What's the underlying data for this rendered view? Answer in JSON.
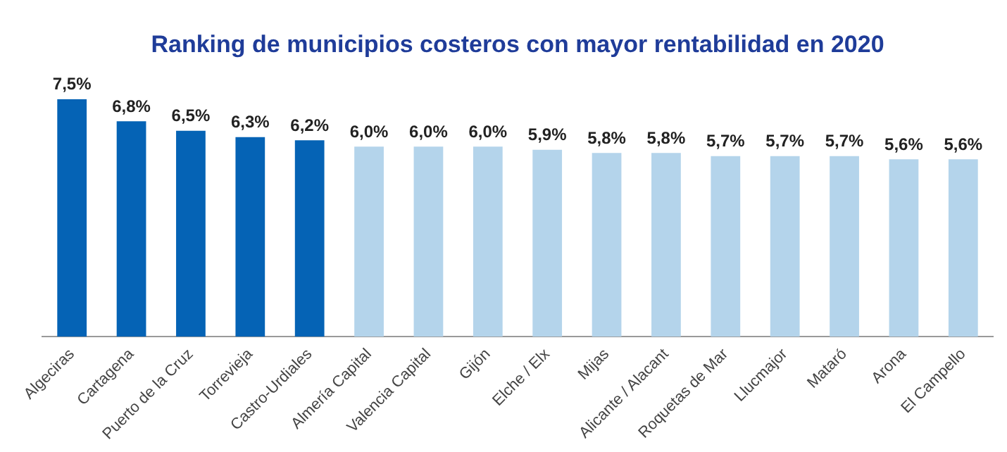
{
  "chart_data": {
    "type": "bar",
    "title": "Ranking de municipios costeros con mayor rentabilidad en 2020",
    "categories": [
      "Algeciras",
      "Cartagena",
      "Puerto de la Cruz",
      "Torrevieja",
      "Castro-Urdiales",
      "Almería Capital",
      "Valencia Capital",
      "Gijón",
      "Elche / Elx",
      "Mijas",
      "Alicante / Alacant",
      "Roquetas de Mar",
      "Llucmajor",
      "Mataró",
      "Arona",
      "El Campello"
    ],
    "values": [
      7.5,
      6.8,
      6.5,
      6.3,
      6.2,
      6.0,
      6.0,
      6.0,
      5.9,
      5.8,
      5.8,
      5.7,
      5.7,
      5.7,
      5.6,
      5.6
    ],
    "value_labels": [
      "7,5%",
      "6,8%",
      "6,5%",
      "6,3%",
      "6,2%",
      "6,0%",
      "6,0%",
      "6,0%",
      "5,9%",
      "5,8%",
      "5,8%",
      "5,7%",
      "5,7%",
      "5,7%",
      "5,6%",
      "5,6%"
    ],
    "colors": [
      "#0563b5",
      "#0563b5",
      "#0563b5",
      "#0563b5",
      "#0563b5",
      "#b4d4eb",
      "#b4d4eb",
      "#b4d4eb",
      "#b4d4eb",
      "#b4d4eb",
      "#b4d4eb",
      "#b4d4eb",
      "#b4d4eb",
      "#b4d4eb",
      "#b4d4eb",
      "#b4d4eb"
    ],
    "grid": false,
    "legend": false
  }
}
